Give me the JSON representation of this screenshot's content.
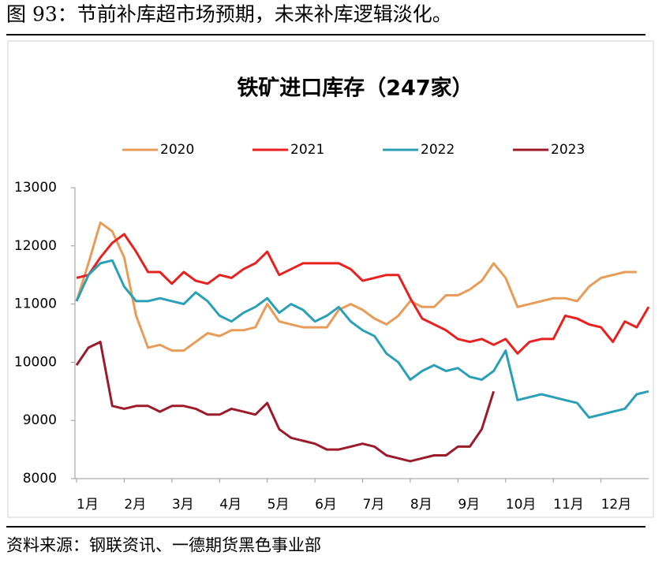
{
  "header": {
    "title": "图 93：节前补库超市场预期，未来补库逻辑淡化。"
  },
  "chart_data": {
    "type": "line",
    "title": "铁矿进口库存（247家）",
    "x": [
      0,
      0.25,
      0.5,
      0.75,
      1,
      1.25,
      1.5,
      1.75,
      2,
      2.25,
      2.5,
      2.75,
      3,
      3.25,
      3.5,
      3.75,
      4,
      4.25,
      4.5,
      4.75,
      5,
      5.25,
      5.5,
      5.75,
      6,
      6.25,
      6.5,
      6.75,
      7,
      7.25,
      7.5,
      7.75,
      8,
      8.25,
      8.5,
      8.75,
      9,
      9.25,
      9.5,
      9.75,
      10,
      10.25,
      10.5,
      10.75,
      11,
      11.25,
      11.5,
      11.75,
      12
    ],
    "xlim": [
      0,
      12
    ],
    "xticks": [
      {
        "value": 0,
        "label": "1月"
      },
      {
        "value": 1,
        "label": "2月"
      },
      {
        "value": 2,
        "label": "3月"
      },
      {
        "value": 3,
        "label": "4月"
      },
      {
        "value": 4,
        "label": "5月"
      },
      {
        "value": 5,
        "label": "6月"
      },
      {
        "value": 6,
        "label": "7月"
      },
      {
        "value": 7,
        "label": "8月"
      },
      {
        "value": 8,
        "label": "9月"
      },
      {
        "value": 9,
        "label": "10月"
      },
      {
        "value": 10,
        "label": "11月"
      },
      {
        "value": 11,
        "label": "12月"
      }
    ],
    "ylim": [
      8000,
      13000
    ],
    "yticks": [
      8000,
      9000,
      10000,
      11000,
      12000,
      13000
    ],
    "legend": "top",
    "series": [
      {
        "name": "2020",
        "color": "#e89c58",
        "values": [
          11050,
          11700,
          12400,
          12250,
          11800,
          10800,
          10250,
          10300,
          10200,
          10200,
          10350,
          10500,
          10450,
          10550,
          10550,
          10600,
          11000,
          10700,
          10650,
          10600,
          10600,
          10600,
          10900,
          11000,
          10900,
          10750,
          10650,
          10800,
          11050,
          10950,
          10950,
          11150,
          11150,
          11250,
          11400,
          11700,
          11450,
          10950,
          11000,
          11050,
          11100,
          11100,
          11050,
          11300,
          11450,
          11500,
          11550,
          11550,
          null
        ]
      },
      {
        "name": "2021",
        "color": "#e8201e",
        "values": [
          11450,
          11500,
          11800,
          12050,
          12200,
          11900,
          11550,
          11550,
          11350,
          11550,
          11400,
          11350,
          11500,
          11450,
          11600,
          11700,
          11900,
          11500,
          11600,
          11700,
          11700,
          11700,
          11700,
          11600,
          11400,
          11450,
          11500,
          11500,
          11100,
          10750,
          10650,
          10550,
          10400,
          10350,
          10400,
          10300,
          10400,
          10150,
          10350,
          10400,
          10400,
          10800,
          10750,
          10650,
          10600,
          10350,
          10700,
          10600,
          10950
        ]
      },
      {
        "name": "2022",
        "color": "#2aa0b8",
        "values": [
          11050,
          11500,
          11700,
          11750,
          11300,
          11050,
          11050,
          11100,
          11050,
          11000,
          11200,
          11050,
          10800,
          10700,
          10850,
          10950,
          11100,
          10850,
          11000,
          10900,
          10700,
          10800,
          10950,
          10700,
          10550,
          10450,
          10150,
          10000,
          9700,
          9850,
          9950,
          9850,
          9900,
          9750,
          9700,
          9850,
          10200,
          9350,
          9400,
          9450,
          9400,
          9350,
          9300,
          9050,
          9100,
          9150,
          9200,
          9450,
          9500
        ]
      },
      {
        "name": "2023",
        "color": "#9b1b2a",
        "values": [
          9950,
          10250,
          10350,
          9250,
          9200,
          9250,
          9250,
          9150,
          9250,
          9250,
          9200,
          9100,
          9100,
          9200,
          9150,
          9100,
          9300,
          8850,
          8700,
          8650,
          8600,
          8500,
          8500,
          8550,
          8600,
          8550,
          8400,
          8350,
          8300,
          8350,
          8400,
          8400,
          8550,
          8550,
          8850,
          9500,
          null,
          null,
          null,
          null,
          null,
          null,
          null,
          null,
          null,
          null,
          null,
          null,
          null
        ]
      }
    ]
  },
  "footer": {
    "source": "资料来源：钢联资讯、一德期货黑色事业部"
  }
}
